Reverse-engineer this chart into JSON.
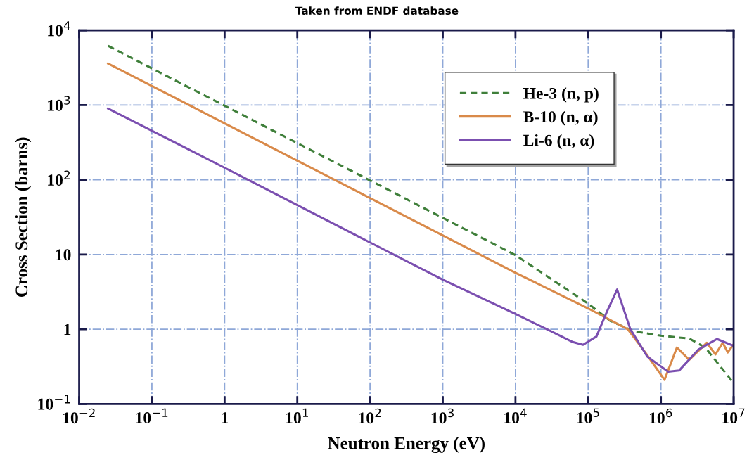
{
  "chart_data": {
    "type": "line",
    "title": "Taken from ENDF database",
    "xlabel": "Neutron Energy (eV)",
    "ylabel": "Cross Section (barns)",
    "log": "xy",
    "grid": true,
    "legend": "top right",
    "xlim": [
      0.01,
      10000000
    ],
    "ylim": [
      0.1,
      10000
    ],
    "xticks": [
      {
        "value": 0.01,
        "label": "10$^{−2}$"
      },
      {
        "value": 0.1,
        "label": "10$^{−1}$"
      },
      {
        "value": 1,
        "label": "1"
      },
      {
        "value": 10,
        "label": "10$^{1}$"
      },
      {
        "value": 100,
        "label": "10$^{2}$"
      },
      {
        "value": 1000,
        "label": "10$^{3}$"
      },
      {
        "value": 10000,
        "label": "10$^{4}$"
      },
      {
        "value": 100000,
        "label": "10$^{5}$"
      },
      {
        "value": 1000000,
        "label": "10$^{6}$"
      },
      {
        "value": 10000000,
        "label": "10$^{7}$"
      }
    ],
    "yticks": [
      {
        "value": 0.1,
        "label": "10$^{−1}$"
      },
      {
        "value": 1,
        "label": "1"
      },
      {
        "value": 10,
        "label": "10"
      },
      {
        "value": 100,
        "label": "10$^{2}$"
      },
      {
        "value": 1000,
        "label": "10$^{3}$"
      },
      {
        "value": 10000,
        "label": "10$^{4}$"
      }
    ],
    "series": [
      {
        "name": "He-3 (n, p)",
        "color": "#3f7f3a",
        "line_style": "dashed",
        "x": [
          0.025,
          1,
          100,
          10000,
          100000,
          200000,
          420000,
          1000000,
          2450000,
          4070000,
          10000000
        ],
        "values": [
          6200,
          980,
          98,
          9.8,
          2.2,
          1.3,
          0.94,
          0.82,
          0.75,
          0.57,
          0.19
        ]
      },
      {
        "name": "B-10 (n, α)",
        "color": "#d98a4a",
        "line_style": "solid",
        "x": [
          0.025,
          1,
          100,
          10000,
          100000,
          350000,
          600000,
          1120000,
          1660000,
          2450000,
          4270000,
          5620000,
          7080000,
          8300000,
          10000000
        ],
        "values": [
          3600,
          570,
          57,
          5.7,
          1.9,
          1.0,
          0.5,
          0.21,
          0.57,
          0.39,
          0.66,
          0.46,
          0.66,
          0.49,
          0.63
        ]
      },
      {
        "name": "Li-6 (n, α)",
        "color": "#7b4fb0",
        "line_style": "solid",
        "x": [
          0.025,
          1,
          100,
          1000,
          10000,
          30000,
          60000,
          85000,
          130000,
          180000,
          250000,
          380000,
          650000,
          1260000,
          1780000,
          3240000,
          5890000,
          10000000
        ],
        "values": [
          900,
          145,
          14.5,
          4.6,
          1.6,
          0.95,
          0.68,
          0.62,
          0.8,
          1.7,
          3.4,
          1.0,
          0.43,
          0.27,
          0.28,
          0.53,
          0.74,
          0.6
        ]
      }
    ]
  }
}
